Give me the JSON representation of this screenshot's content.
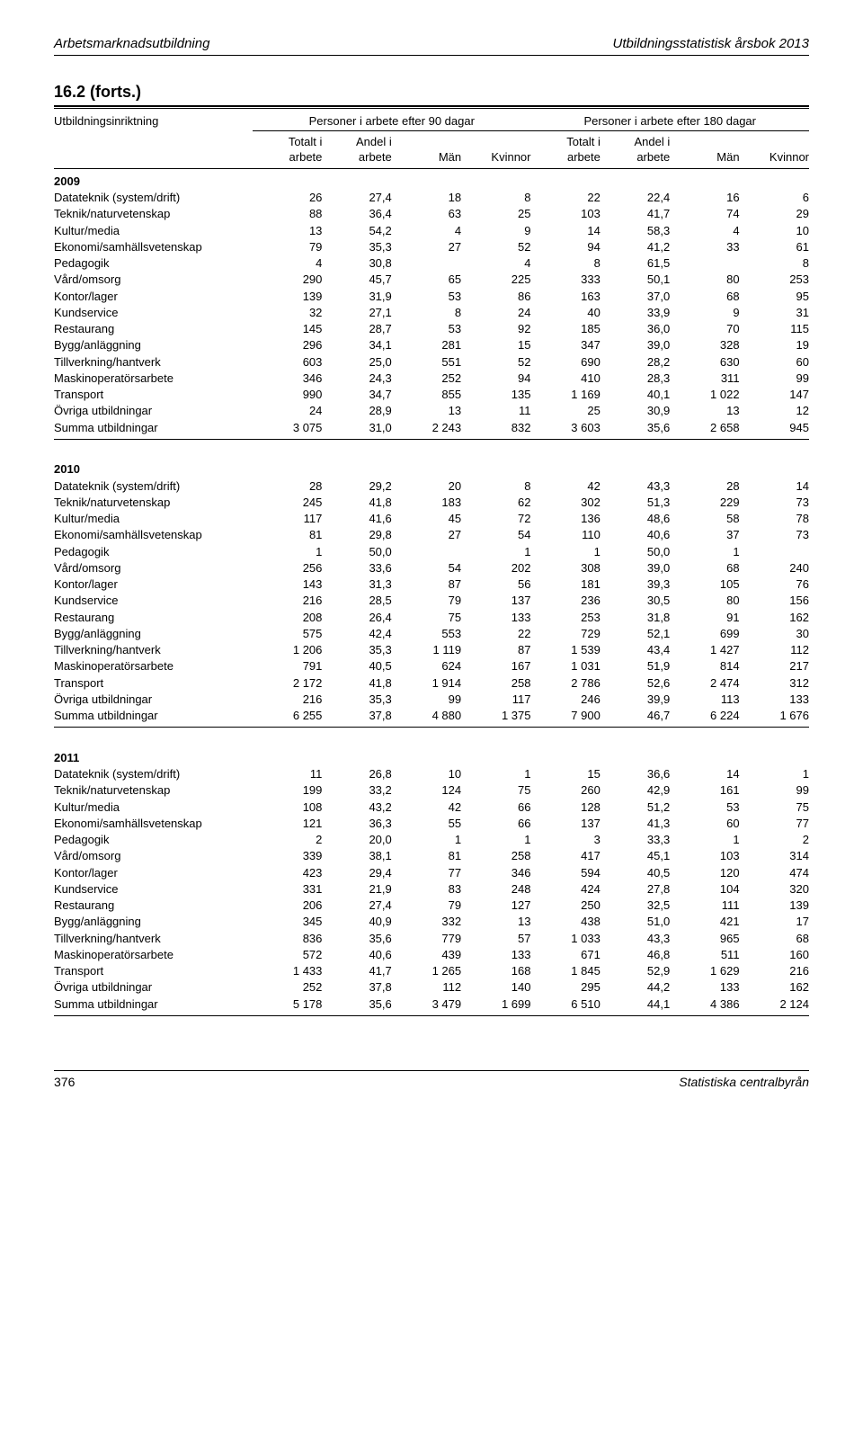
{
  "header": {
    "left": "Arbetsmarknadsutbildning",
    "right": "Utbildningsstatistisk årsbok 2013"
  },
  "title": "16.2 (forts.)",
  "columns": {
    "row_label": "Utbildningsinriktning",
    "spanner_left": "Personer i arbete efter 90 dagar",
    "spanner_right": "Personer i arbete efter 180 dagar",
    "sub": [
      "Totalt i\narbete",
      "Andel i\narbete",
      "Män",
      "Kvinnor",
      "Totalt i\narbete",
      "Andel i\narbete",
      "Män",
      "Kvinnor"
    ]
  },
  "blocks": [
    {
      "year": "2009",
      "rows": [
        [
          "Datateknik (system/drift)",
          "26",
          "27,4",
          "18",
          "8",
          "22",
          "22,4",
          "16",
          "6"
        ],
        [
          "Teknik/naturvetenskap",
          "88",
          "36,4",
          "63",
          "25",
          "103",
          "41,7",
          "74",
          "29"
        ],
        [
          "Kultur/media",
          "13",
          "54,2",
          "4",
          "9",
          "14",
          "58,3",
          "4",
          "10"
        ],
        [
          "Ekonomi/samhällsvetenskap",
          "79",
          "35,3",
          "27",
          "52",
          "94",
          "41,2",
          "33",
          "61"
        ],
        [
          "Pedagogik",
          "4",
          "30,8",
          "",
          "4",
          "8",
          "61,5",
          "",
          "8"
        ],
        [
          "Vård/omsorg",
          "290",
          "45,7",
          "65",
          "225",
          "333",
          "50,1",
          "80",
          "253"
        ],
        [
          "Kontor/lager",
          "139",
          "31,9",
          "53",
          "86",
          "163",
          "37,0",
          "68",
          "95"
        ],
        [
          "Kundservice",
          "32",
          "27,1",
          "8",
          "24",
          "40",
          "33,9",
          "9",
          "31"
        ],
        [
          "Restaurang",
          "145",
          "28,7",
          "53",
          "92",
          "185",
          "36,0",
          "70",
          "115"
        ],
        [
          "Bygg/anläggning",
          "296",
          "34,1",
          "281",
          "15",
          "347",
          "39,0",
          "328",
          "19"
        ],
        [
          "Tillverkning/hantverk",
          "603",
          "25,0",
          "551",
          "52",
          "690",
          "28,2",
          "630",
          "60"
        ],
        [
          "Maskinoperatörsarbete",
          "346",
          "24,3",
          "252",
          "94",
          "410",
          "28,3",
          "311",
          "99"
        ],
        [
          "Transport",
          "990",
          "34,7",
          "855",
          "135",
          "1 169",
          "40,1",
          "1 022",
          "147"
        ],
        [
          "Övriga utbildningar",
          "24",
          "28,9",
          "13",
          "11",
          "25",
          "30,9",
          "13",
          "12"
        ],
        [
          "Summa utbildningar",
          "3 075",
          "31,0",
          "2 243",
          "832",
          "3 603",
          "35,6",
          "2 658",
          "945"
        ]
      ]
    },
    {
      "year": "2010",
      "rows": [
        [
          "Datateknik (system/drift)",
          "28",
          "29,2",
          "20",
          "8",
          "42",
          "43,3",
          "28",
          "14"
        ],
        [
          "Teknik/naturvetenskap",
          "245",
          "41,8",
          "183",
          "62",
          "302",
          "51,3",
          "229",
          "73"
        ],
        [
          "Kultur/media",
          "117",
          "41,6",
          "45",
          "72",
          "136",
          "48,6",
          "58",
          "78"
        ],
        [
          "Ekonomi/samhällsvetenskap",
          "81",
          "29,8",
          "27",
          "54",
          "110",
          "40,6",
          "37",
          "73"
        ],
        [
          "Pedagogik",
          "1",
          "50,0",
          "",
          "1",
          "1",
          "50,0",
          "1",
          ""
        ],
        [
          "Vård/omsorg",
          "256",
          "33,6",
          "54",
          "202",
          "308",
          "39,0",
          "68",
          "240"
        ],
        [
          "Kontor/lager",
          "143",
          "31,3",
          "87",
          "56",
          "181",
          "39,3",
          "105",
          "76"
        ],
        [
          "Kundservice",
          "216",
          "28,5",
          "79",
          "137",
          "236",
          "30,5",
          "80",
          "156"
        ],
        [
          "Restaurang",
          "208",
          "26,4",
          "75",
          "133",
          "253",
          "31,8",
          "91",
          "162"
        ],
        [
          "Bygg/anläggning",
          "575",
          "42,4",
          "553",
          "22",
          "729",
          "52,1",
          "699",
          "30"
        ],
        [
          "Tillverkning/hantverk",
          "1 206",
          "35,3",
          "1 119",
          "87",
          "1 539",
          "43,4",
          "1 427",
          "112"
        ],
        [
          "Maskinoperatörsarbete",
          "791",
          "40,5",
          "624",
          "167",
          "1 031",
          "51,9",
          "814",
          "217"
        ],
        [
          "Transport",
          "2 172",
          "41,8",
          "1 914",
          "258",
          "2 786",
          "52,6",
          "2 474",
          "312"
        ],
        [
          "Övriga utbildningar",
          "216",
          "35,3",
          "99",
          "117",
          "246",
          "39,9",
          "113",
          "133"
        ],
        [
          "Summa utbildningar",
          "6 255",
          "37,8",
          "4 880",
          "1 375",
          "7 900",
          "46,7",
          "6 224",
          "1 676"
        ]
      ]
    },
    {
      "year": "2011",
      "rows": [
        [
          "Datateknik (system/drift)",
          "11",
          "26,8",
          "10",
          "1",
          "15",
          "36,6",
          "14",
          "1"
        ],
        [
          "Teknik/naturvetenskap",
          "199",
          "33,2",
          "124",
          "75",
          "260",
          "42,9",
          "161",
          "99"
        ],
        [
          "Kultur/media",
          "108",
          "43,2",
          "42",
          "66",
          "128",
          "51,2",
          "53",
          "75"
        ],
        [
          "Ekonomi/samhällsvetenskap",
          "121",
          "36,3",
          "55",
          "66",
          "137",
          "41,3",
          "60",
          "77"
        ],
        [
          "Pedagogik",
          "2",
          "20,0",
          "1",
          "1",
          "3",
          "33,3",
          "1",
          "2"
        ],
        [
          "Vård/omsorg",
          "339",
          "38,1",
          "81",
          "258",
          "417",
          "45,1",
          "103",
          "314"
        ],
        [
          "Kontor/lager",
          "423",
          "29,4",
          "77",
          "346",
          "594",
          "40,5",
          "120",
          "474"
        ],
        [
          "Kundservice",
          "331",
          "21,9",
          "83",
          "248",
          "424",
          "27,8",
          "104",
          "320"
        ],
        [
          "Restaurang",
          "206",
          "27,4",
          "79",
          "127",
          "250",
          "32,5",
          "111",
          "139"
        ],
        [
          "Bygg/anläggning",
          "345",
          "40,9",
          "332",
          "13",
          "438",
          "51,0",
          "421",
          "17"
        ],
        [
          "Tillverkning/hantverk",
          "836",
          "35,6",
          "779",
          "57",
          "1 033",
          "43,3",
          "965",
          "68"
        ],
        [
          "Maskinoperatörsarbete",
          "572",
          "40,6",
          "439",
          "133",
          "671",
          "46,8",
          "511",
          "160"
        ],
        [
          "Transport",
          "1 433",
          "41,7",
          "1 265",
          "168",
          "1 845",
          "52,9",
          "1 629",
          "216"
        ],
        [
          "Övriga utbildningar",
          "252",
          "37,8",
          "112",
          "140",
          "295",
          "44,2",
          "133",
          "162"
        ],
        [
          "Summa utbildningar",
          "5 178",
          "35,6",
          "3 479",
          "1 699",
          "6 510",
          "44,1",
          "4 386",
          "2 124"
        ]
      ]
    }
  ],
  "footer": {
    "page": "376",
    "publisher": "Statistiska centralbyrån"
  }
}
